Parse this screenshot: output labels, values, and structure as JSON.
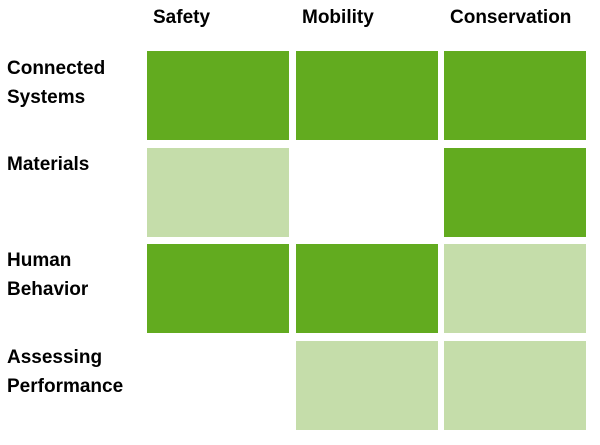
{
  "chart_data": {
    "type": "heatmap",
    "columns": [
      "Safety",
      "Mobility",
      "Conservation"
    ],
    "rows": [
      {
        "label_lines": [
          "Connected",
          "Systems"
        ],
        "levels": [
          "high",
          "high",
          "high"
        ]
      },
      {
        "label_lines": [
          "Materials"
        ],
        "levels": [
          "low",
          "none",
          "high"
        ]
      },
      {
        "label_lines": [
          "Human",
          "Behavior"
        ],
        "levels": [
          "high",
          "high",
          "low"
        ]
      },
      {
        "label_lines": [
          "Assessing",
          "Performance"
        ],
        "levels": [
          "none",
          "low",
          "low"
        ]
      }
    ],
    "level_colors": {
      "high": "#62ab1f",
      "low": "#c5ddaa",
      "none": "#ffffff"
    }
  }
}
